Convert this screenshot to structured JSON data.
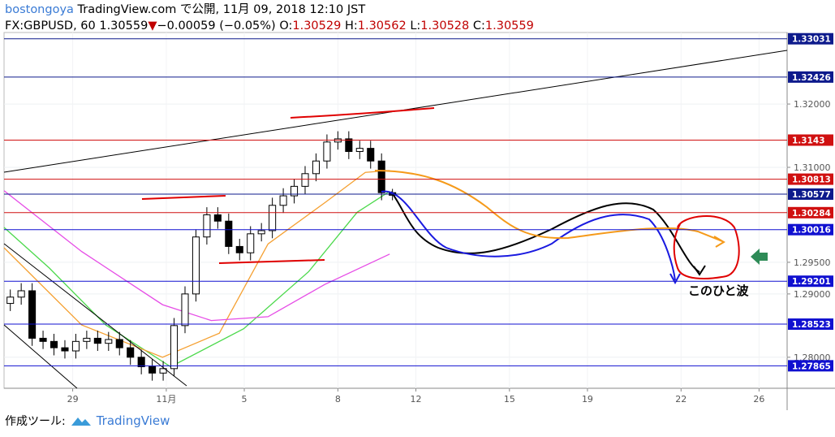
{
  "header": {
    "author": "bostongoya",
    "published": "TradingView.com で公開, 11月 09, 2018 12:10 JST",
    "symbol": "FX:GBPUSD, 60 1.30559",
    "arrow": "▼",
    "change": "−0.00059 (−0.05%)",
    "open_label": "O:",
    "open": "1.30529",
    "high_label": "H:",
    "high": "1.30562",
    "low_label": "L:",
    "low": "1.30528",
    "close_label": "C:",
    "close": "1.30559"
  },
  "footer": {
    "made_with": "作成ツール:",
    "brand": "TradingView"
  },
  "chart_data": {
    "type": "candlestick",
    "up_color": "#ffffff",
    "down_color": "#000000",
    "x": [
      -2,
      -1.65,
      -1.3,
      -0.95,
      -0.6,
      -0.25,
      0.1,
      0.45,
      0.8,
      1.15,
      1.5,
      1.85,
      2.2,
      2.55,
      2.9,
      3.25,
      3.6,
      3.95,
      4.3,
      4.65,
      5,
      5.35,
      5.7,
      6.05,
      6.4,
      6.75,
      7.1,
      7.45,
      7.8,
      8.15,
      8.5,
      8.85,
      9.2,
      9.55,
      9.9,
      10.25
    ],
    "open": [
      1.2885,
      1.2895,
      1.2905,
      1.283,
      1.2825,
      1.2815,
      1.281,
      1.2825,
      1.283,
      1.2822,
      1.2828,
      1.2815,
      1.28,
      1.2785,
      1.2775,
      1.2782,
      1.285,
      1.29,
      1.299,
      1.3025,
      1.3015,
      1.2975,
      1.2965,
      1.2995,
      1.3,
      1.304,
      1.3055,
      1.307,
      1.309,
      1.311,
      1.314,
      1.3145,
      1.3125,
      1.313,
      1.311,
      1.306
    ],
    "high": [
      1.2907,
      1.2917,
      1.2917,
      1.2842,
      1.2837,
      1.2827,
      1.2837,
      1.2842,
      1.2842,
      1.284,
      1.284,
      1.2827,
      1.2812,
      1.2797,
      1.2794,
      1.2862,
      1.2912,
      1.3002,
      1.3037,
      1.3037,
      1.3027,
      1.2987,
      1.3007,
      1.3012,
      1.3052,
      1.3067,
      1.3082,
      1.3102,
      1.3122,
      1.3152,
      1.3157,
      1.3157,
      1.3142,
      1.3142,
      1.3122,
      1.3066
    ],
    "low": [
      1.2873,
      1.2883,
      1.2818,
      1.2813,
      1.2803,
      1.2798,
      1.2798,
      1.2813,
      1.281,
      1.281,
      1.2803,
      1.2788,
      1.2773,
      1.2763,
      1.2763,
      1.277,
      1.2838,
      1.2888,
      1.2978,
      1.3003,
      1.2963,
      1.2953,
      1.2953,
      1.2983,
      1.2988,
      1.3028,
      1.3043,
      1.3058,
      1.3078,
      1.3098,
      1.3128,
      1.3113,
      1.3113,
      1.3098,
      1.3048,
      1.3048
    ],
    "close": [
      1.2895,
      1.2905,
      1.283,
      1.2825,
      1.2815,
      1.281,
      1.2825,
      1.283,
      1.2822,
      1.2828,
      1.2815,
      1.28,
      1.2785,
      1.2775,
      1.2782,
      1.285,
      1.29,
      1.299,
      1.3025,
      1.3015,
      1.2975,
      1.2965,
      1.2995,
      1.3,
      1.304,
      1.3055,
      1.307,
      1.309,
      1.311,
      1.314,
      1.3145,
      1.3125,
      1.313,
      1.311,
      1.306,
      1.30559
    ],
    "moving_averages": [
      {
        "color": "#4cd94c",
        "x": [
          -2.2,
          -0.75,
          1.06,
          3.14,
          5.48,
          7.56,
          9.12,
          10.16
        ],
        "values": [
          1.3005,
          1.2941,
          1.2851,
          1.2785,
          1.2845,
          1.2935,
          1.3029,
          1.3062
        ]
      },
      {
        "color": "#f5a031",
        "x": [
          -2.2,
          0.29,
          2.88,
          4.7,
          6.26,
          8.08,
          9.38,
          10.16
        ],
        "values": [
          1.2973,
          1.2851,
          1.28,
          1.2838,
          1.2979,
          1.3044,
          1.3092,
          1.3095
        ]
      },
      {
        "color": "#e64ce6",
        "x": [
          -2.2,
          0.29,
          2.88,
          4.44,
          6.26,
          8.08,
          10.16
        ],
        "values": [
          1.3063,
          1.2967,
          1.2883,
          1.2858,
          1.2864,
          1.2915,
          1.2963
        ]
      }
    ],
    "xlim": [
      -2.2,
      22.9
    ],
    "ylim": [
      1.2751,
      1.3313
    ],
    "xticks": [
      {
        "value": 0,
        "label": "29"
      },
      {
        "value": 3,
        "label": "11月"
      },
      {
        "value": 5.5,
        "label": "5"
      },
      {
        "value": 8.5,
        "label": "8"
      },
      {
        "value": 11,
        "label": "12"
      },
      {
        "value": 14,
        "label": "15"
      },
      {
        "value": 16.5,
        "label": "19"
      },
      {
        "value": 19.5,
        "label": "22"
      },
      {
        "value": 22,
        "label": "26"
      }
    ],
    "yticks": [
      {
        "value": 1.32,
        "label": "1.32000"
      },
      {
        "value": 1.31,
        "label": "1.31000"
      },
      {
        "value": 1.295,
        "label": "1.29500"
      },
      {
        "value": 1.29,
        "label": "1.29000"
      },
      {
        "value": 1.28,
        "label": "1.28000"
      }
    ],
    "levels": [
      {
        "value": 1.33031,
        "color": "#0d1a8c"
      },
      {
        "value": 1.32426,
        "color": "#0d1a8c"
      },
      {
        "value": 1.3143,
        "color": "#d01010"
      },
      {
        "value": 1.30813,
        "color": "#d01010"
      },
      {
        "value": 1.30577,
        "color": "#0d1a8c"
      },
      {
        "value": 1.30284,
        "color": "#d01010"
      },
      {
        "value": 1.30016,
        "color": "#1010d0"
      },
      {
        "value": 1.29201,
        "color": "#1010d0"
      },
      {
        "value": 1.28523,
        "color": "#1010d0"
      },
      {
        "value": 1.27865,
        "color": "#1010d0"
      }
    ],
    "annotation": "このひと波"
  }
}
